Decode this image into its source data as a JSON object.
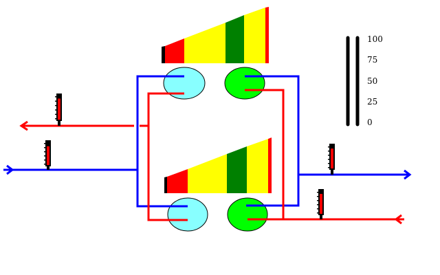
{
  "colors": {
    "hot": "#ff0000",
    "cold": "#0000ff",
    "condenser": "#88ffff",
    "evaporator": "#00ff00",
    "outline": "#000000",
    "background": "#ffffff"
  },
  "compressor_wedge": {
    "segments": [
      {
        "name": "black-band",
        "color": "#000000"
      },
      {
        "name": "red-band",
        "color": "#ff0000"
      },
      {
        "name": "yellow-band-left",
        "color": "#ffff00"
      },
      {
        "name": "green-band",
        "color": "#008000"
      },
      {
        "name": "yellow-band-right",
        "color": "#ffff00"
      },
      {
        "name": "red-tip",
        "color": "#ff0000"
      }
    ]
  },
  "gauges": [
    {
      "name": "gauge-upper-left",
      "level": 0.85
    },
    {
      "name": "gauge-lower-left",
      "level": 0.8
    },
    {
      "name": "gauge-upper-right",
      "level": 0.85
    },
    {
      "name": "gauge-lower-right",
      "level": 0.85
    }
  ],
  "scale": {
    "labels": [
      "100",
      "75",
      "50",
      "25",
      "0"
    ]
  },
  "icons": {
    "arrow": "arrow-icon"
  }
}
